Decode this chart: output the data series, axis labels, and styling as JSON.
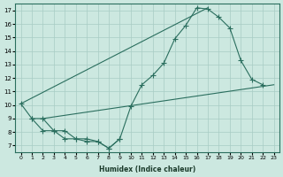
{
  "xlabel": "Humidex (Indice chaleur)",
  "bg_color": "#cce8e0",
  "grid_color": "#a8ccC4",
  "line_color": "#2a6e5e",
  "xlim": [
    -0.5,
    23.5
  ],
  "ylim": [
    6.5,
    17.5
  ],
  "xticks": [
    0,
    1,
    2,
    3,
    4,
    5,
    6,
    7,
    8,
    9,
    10,
    11,
    12,
    13,
    14,
    15,
    16,
    17,
    18,
    19,
    20,
    21,
    22,
    23
  ],
  "yticks": [
    7,
    8,
    9,
    10,
    11,
    12,
    13,
    14,
    15,
    16,
    17
  ],
  "curve1_x": [
    0,
    1,
    2,
    3,
    4,
    5,
    6,
    7,
    8,
    9,
    10,
    11,
    12,
    13,
    14,
    15,
    16,
    17,
    18,
    19,
    20,
    21,
    22
  ],
  "curve1_y": [
    10.1,
    9.0,
    9.0,
    8.1,
    8.1,
    7.5,
    7.5,
    7.3,
    6.8,
    7.5,
    9.9,
    11.5,
    12.2,
    13.1,
    14.9,
    15.9,
    17.2,
    17.1,
    16.5,
    15.7,
    13.3,
    11.9,
    11.5
  ],
  "line1_x": [
    0,
    17
  ],
  "line1_y": [
    10.1,
    17.2
  ],
  "line2_x": [
    2,
    23
  ],
  "line2_y": [
    9.0,
    11.5
  ],
  "curve2_x": [
    1,
    2,
    3,
    4,
    5,
    6,
    7,
    8,
    9
  ],
  "curve2_y": [
    9.0,
    8.1,
    8.1,
    7.5,
    7.5,
    7.3,
    7.3,
    6.8,
    7.5
  ]
}
